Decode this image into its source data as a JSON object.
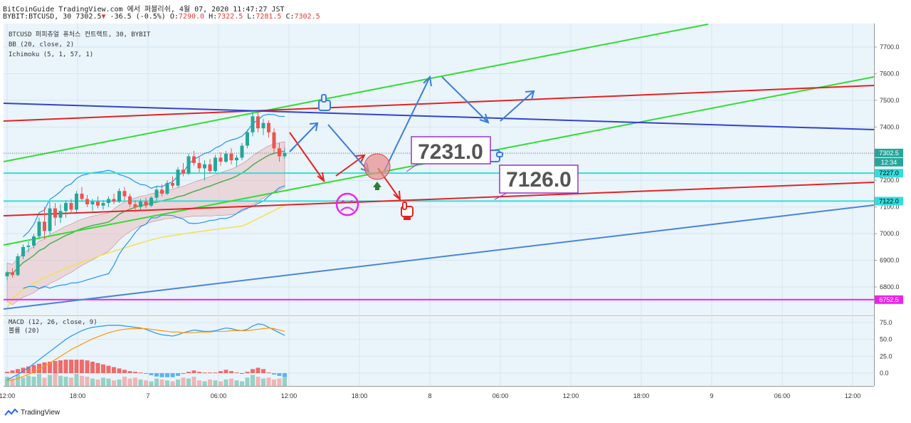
{
  "header": {
    "line1": "BitCoinGuide TradingView.com 에서 퍼블리쉬, 4월 07, 2020 11:47:27 JST",
    "symbol": "BYBIT:BTCUSD, 30",
    "last": "7302.5",
    "change": "-36.5 (-0.5%)",
    "o_label": "O:",
    "o_val": "7290.0",
    "h_label": "H:",
    "h_val": "7322.5",
    "l_label": "L:",
    "l_val": "7281.5",
    "c_label": "C:",
    "c_val": "7302.5"
  },
  "legend": {
    "title": "BTCUSD 퍼피츄얼 퓨처스 컨트랙트, 30, BYBIT",
    "bb": "BB (20, close, 2)",
    "ichimoku": "Ichimoku (5, 1, 57, 1)",
    "macd": "MACD (12, 26, close, 9)",
    "volume": "볼륨 (20)"
  },
  "footer": {
    "brand": "TradingView",
    "logo_icon": "tradingview-logo-icon"
  },
  "colors": {
    "up": "#26a69a",
    "down": "#ef5350",
    "green_line": "#33dd33",
    "red_line": "#e52222",
    "blue_line": "#3344cc",
    "light_blue_line": "#4a86d8",
    "cyan": "#33dddd",
    "magenta": "#ee22ee",
    "annotation_blue": "#3b7dd8",
    "annotation_red": "#e52222",
    "box_border": "#9933cc"
  },
  "chart_data": [
    {
      "type": "candlestick",
      "title": "BTCUSD 퍼피츄얼 퓨처스 컨트랙트, 30, BYBIT",
      "x_ticks": [
        "12:00",
        "18:00",
        "7",
        "06:00",
        "12:00",
        "18:00",
        "8",
        "06:00",
        "12:00",
        "18:00",
        "9",
        "06:00",
        "12:00"
      ],
      "y_ticks": [
        7700,
        7600,
        7500,
        7400,
        7300,
        7200,
        7100,
        7000,
        6900,
        6800
      ],
      "y_tick_labels": [
        "7700.0",
        "7600.0",
        "7500.0",
        "7400.0",
        "7300.0",
        "7200.0",
        "7100.0",
        "7000.0",
        "6900.0",
        "6800.0"
      ],
      "ylim": [
        6730,
        7810
      ],
      "price_tags": [
        {
          "label": "7302.5",
          "value": 7302.5,
          "color": "#26a69a"
        },
        {
          "label": "12:34",
          "value": 7268,
          "color": "#26a69a"
        },
        {
          "label": "7227.0",
          "value": 7227,
          "color": "#33dddd"
        },
        {
          "label": "7122.0",
          "value": 7122,
          "color": "#33dddd"
        },
        {
          "label": "6752.5",
          "value": 6752.5,
          "color": "#ee22ee"
        }
      ],
      "horizontal_levels": [
        {
          "value": 7227,
          "color": "#33dddd"
        },
        {
          "value": 7122,
          "color": "#33dddd"
        },
        {
          "value": 6752.5,
          "color": "#ee22ee"
        }
      ],
      "annotations": [
        {
          "text": "7231.0",
          "color": "#9933cc"
        },
        {
          "text": "7126.0",
          "color": "#9933cc"
        }
      ],
      "candles": [
        {
          "o": 6840,
          "h": 6860,
          "l": 6825,
          "c": 6855
        },
        {
          "o": 6855,
          "h": 6870,
          "l": 6835,
          "c": 6845
        },
        {
          "o": 6845,
          "h": 6925,
          "l": 6840,
          "c": 6915
        },
        {
          "o": 6915,
          "h": 6960,
          "l": 6905,
          "c": 6950
        },
        {
          "o": 6950,
          "h": 6970,
          "l": 6930,
          "c": 6955
        },
        {
          "o": 6955,
          "h": 7000,
          "l": 6945,
          "c": 6990
        },
        {
          "o": 6990,
          "h": 7060,
          "l": 6980,
          "c": 7045
        },
        {
          "o": 7045,
          "h": 7100,
          "l": 6980,
          "c": 7010
        },
        {
          "o": 7010,
          "h": 7120,
          "l": 7000,
          "c": 7095
        },
        {
          "o": 7095,
          "h": 7115,
          "l": 7030,
          "c": 7060
        },
        {
          "o": 7060,
          "h": 7110,
          "l": 7040,
          "c": 7085
        },
        {
          "o": 7085,
          "h": 7125,
          "l": 7060,
          "c": 7115
        },
        {
          "o": 7115,
          "h": 7130,
          "l": 7075,
          "c": 7090
        },
        {
          "o": 7090,
          "h": 7160,
          "l": 7080,
          "c": 7150
        },
        {
          "o": 7150,
          "h": 7175,
          "l": 7120,
          "c": 7130
        },
        {
          "o": 7130,
          "h": 7145,
          "l": 7100,
          "c": 7110
        },
        {
          "o": 7110,
          "h": 7130,
          "l": 7085,
          "c": 7120
        },
        {
          "o": 7120,
          "h": 7140,
          "l": 7095,
          "c": 7105
        },
        {
          "o": 7105,
          "h": 7125,
          "l": 7090,
          "c": 7115
        },
        {
          "o": 7115,
          "h": 7140,
          "l": 7100,
          "c": 7130
        },
        {
          "o": 7130,
          "h": 7150,
          "l": 7110,
          "c": 7120
        },
        {
          "o": 7120,
          "h": 7170,
          "l": 7115,
          "c": 7160
        },
        {
          "o": 7160,
          "h": 7175,
          "l": 7125,
          "c": 7140
        },
        {
          "o": 7140,
          "h": 7150,
          "l": 7100,
          "c": 7110
        },
        {
          "o": 7110,
          "h": 7125,
          "l": 7080,
          "c": 7100
        },
        {
          "o": 7100,
          "h": 7130,
          "l": 7090,
          "c": 7120
        },
        {
          "o": 7120,
          "h": 7135,
          "l": 7095,
          "c": 7105
        },
        {
          "o": 7105,
          "h": 7140,
          "l": 7100,
          "c": 7135
        },
        {
          "o": 7135,
          "h": 7180,
          "l": 7125,
          "c": 7165
        },
        {
          "o": 7165,
          "h": 7185,
          "l": 7140,
          "c": 7150
        },
        {
          "o": 7150,
          "h": 7200,
          "l": 7145,
          "c": 7190
        },
        {
          "o": 7190,
          "h": 7215,
          "l": 7170,
          "c": 7180
        },
        {
          "o": 7180,
          "h": 7250,
          "l": 7175,
          "c": 7240
        },
        {
          "o": 7240,
          "h": 7265,
          "l": 7215,
          "c": 7225
        },
        {
          "o": 7225,
          "h": 7300,
          "l": 7220,
          "c": 7290
        },
        {
          "o": 7290,
          "h": 7310,
          "l": 7255,
          "c": 7265
        },
        {
          "o": 7265,
          "h": 7290,
          "l": 7230,
          "c": 7245
        },
        {
          "o": 7245,
          "h": 7275,
          "l": 7200,
          "c": 7260
        },
        {
          "o": 7260,
          "h": 7280,
          "l": 7225,
          "c": 7235
        },
        {
          "o": 7235,
          "h": 7295,
          "l": 7230,
          "c": 7285
        },
        {
          "o": 7285,
          "h": 7305,
          "l": 7255,
          "c": 7270
        },
        {
          "o": 7270,
          "h": 7310,
          "l": 7265,
          "c": 7300
        },
        {
          "o": 7300,
          "h": 7320,
          "l": 7260,
          "c": 7275
        },
        {
          "o": 7275,
          "h": 7295,
          "l": 7250,
          "c": 7285
        },
        {
          "o": 7285,
          "h": 7340,
          "l": 7275,
          "c": 7330
        },
        {
          "o": 7330,
          "h": 7390,
          "l": 7320,
          "c": 7380
        },
        {
          "o": 7380,
          "h": 7460,
          "l": 7365,
          "c": 7440
        },
        {
          "o": 7440,
          "h": 7460,
          "l": 7380,
          "c": 7395
        },
        {
          "o": 7395,
          "h": 7430,
          "l": 7370,
          "c": 7415
        },
        {
          "o": 7415,
          "h": 7425,
          "l": 7360,
          "c": 7380
        },
        {
          "o": 7380,
          "h": 7395,
          "l": 7300,
          "c": 7320
        },
        {
          "o": 7320,
          "h": 7340,
          "l": 7270,
          "c": 7290
        },
        {
          "o": 7290,
          "h": 7322.5,
          "l": 7281.5,
          "c": 7302.5
        }
      ]
    },
    {
      "type": "bar",
      "title": "MACD (12, 26, close, 9)",
      "y_ticks": [
        75.0,
        50.0,
        25.0,
        0.0
      ],
      "y_tick_labels": [
        "75.0",
        "50.0",
        "25.0",
        "0.0"
      ],
      "ylim": [
        -15,
        85
      ],
      "series": [
        {
          "name": "MACD",
          "type": "line",
          "color": "#2196f3",
          "values": [
            -10,
            -6,
            -2,
            3,
            8,
            14,
            20,
            26,
            32,
            38,
            44,
            50,
            55,
            59,
            63,
            66,
            68,
            69,
            70,
            71,
            71,
            71,
            70,
            69,
            68,
            67,
            65,
            62,
            59,
            57,
            56,
            55,
            57,
            60,
            62,
            64,
            63,
            62,
            62,
            63,
            65,
            67,
            66,
            64,
            63,
            65,
            70,
            73,
            72,
            68,
            64,
            60,
            56
          ]
        },
        {
          "name": "Signal",
          "type": "line",
          "color": "#ff9800",
          "values": [
            -12,
            -10,
            -8,
            -5,
            -2,
            2,
            6,
            10,
            15,
            20,
            25,
            30,
            35,
            39,
            43,
            47,
            51,
            54,
            57,
            60,
            62,
            64,
            65,
            66,
            66,
            66,
            66,
            65,
            64,
            63,
            62,
            61,
            61,
            60,
            60,
            60,
            61,
            61,
            61,
            62,
            62,
            62,
            63,
            63,
            63,
            63,
            64,
            65,
            66,
            67,
            66,
            64,
            62
          ]
        },
        {
          "name": "Histogram",
          "type": "bar",
          "values": [
            2,
            4,
            6,
            8,
            10,
            12,
            14,
            16,
            17,
            18,
            19,
            20,
            20,
            20,
            20,
            19,
            17,
            15,
            13,
            11,
            9,
            7,
            5,
            3,
            2,
            1,
            -1,
            -3,
            -5,
            -6,
            -6,
            -6,
            -4,
            0,
            2,
            4,
            2,
            1,
            1,
            1,
            3,
            5,
            3,
            1,
            0,
            2,
            6,
            8,
            6,
            1,
            -2,
            -4,
            -6
          ]
        },
        {
          "name": "볼륨",
          "type": "bar",
          "values": [
            10,
            8,
            12,
            9,
            11,
            10,
            13,
            9,
            12,
            14,
            11,
            10,
            9,
            13,
            11,
            10,
            8,
            7,
            9,
            8,
            6,
            7,
            10,
            8,
            9,
            7,
            6,
            5,
            8,
            7,
            6,
            5,
            7,
            9,
            8,
            10,
            6,
            5,
            7,
            6,
            5,
            7,
            8,
            6,
            5,
            9,
            12,
            10,
            8,
            9,
            7,
            8,
            9
          ]
        }
      ]
    }
  ]
}
